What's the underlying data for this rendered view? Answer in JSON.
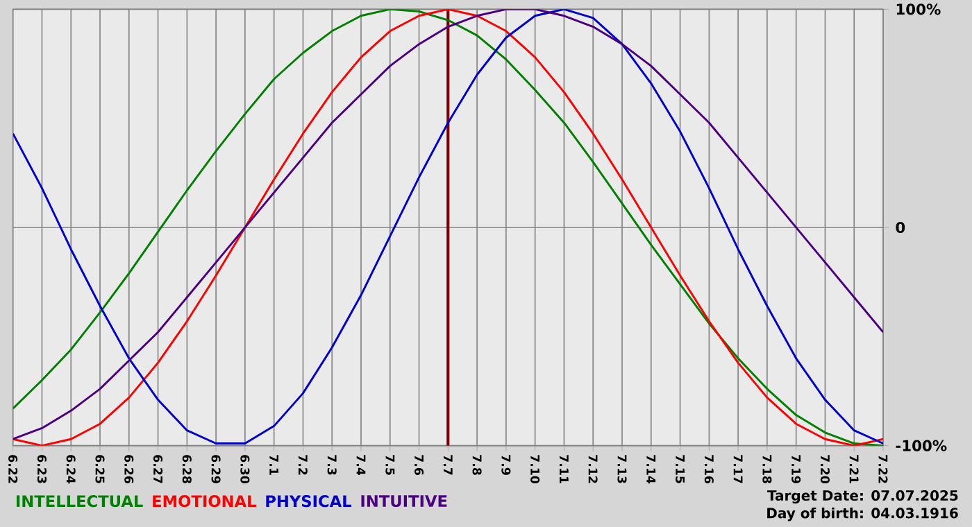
{
  "chart_data": {
    "type": "line",
    "categories": [
      "6.22",
      "6.23",
      "6.24",
      "6.25",
      "6.26",
      "6.27",
      "6.28",
      "6.29",
      "6.30",
      "7.1",
      "7.2",
      "7.3",
      "7.4",
      "7.5",
      "7.6",
      "7.7",
      "7.8",
      "7.9",
      "7.10",
      "7.11",
      "7.12",
      "7.13",
      "7.14",
      "7.15",
      "7.16",
      "7.17",
      "7.18",
      "7.19",
      "7.20",
      "7.21",
      "7.22"
    ],
    "series": [
      {
        "name": "INTELLECTUAL",
        "color": "#008000",
        "values": [
          -83,
          -70,
          -56,
          -39,
          -21,
          -2,
          17,
          35,
          52,
          68,
          80,
          90,
          97,
          100,
          99,
          95,
          88,
          77,
          63,
          48,
          30,
          11,
          -8,
          -26,
          -44,
          -60,
          -74,
          -86,
          -94,
          -99,
          -100
        ]
      },
      {
        "name": "EMOTIONAL",
        "color": "#ff0000",
        "values": [
          -97,
          -100,
          -97,
          -90,
          -78,
          -62,
          -43,
          -22,
          0,
          22,
          43,
          62,
          78,
          90,
          97,
          100,
          97,
          90,
          78,
          62,
          43,
          22,
          0,
          -22,
          -43,
          -62,
          -78,
          -90,
          -97,
          -100,
          -97
        ]
      },
      {
        "name": "PHYSICAL",
        "color": "#0000cc",
        "values": [
          43,
          18,
          -10,
          -36,
          -60,
          -79,
          -93,
          -99,
          -99,
          -91,
          -76,
          -55,
          -31,
          -4,
          23,
          48,
          70,
          87,
          97,
          100,
          96,
          84,
          66,
          44,
          18,
          -10,
          -36,
          -60,
          -79,
          -93,
          -99
        ]
      },
      {
        "name": "INTUITIVE",
        "color": "#4b0082",
        "values": [
          -97,
          -92,
          -84,
          -74,
          -61,
          -48,
          -32,
          -16,
          0,
          16,
          32,
          48,
          61,
          74,
          84,
          92,
          97,
          100,
          100,
          97,
          92,
          84,
          74,
          61,
          48,
          32,
          16,
          0,
          -16,
          -32,
          -48
        ]
      }
    ],
    "ylim": [
      -100,
      100
    ],
    "yticks": [
      {
        "value": 100,
        "label": "100%"
      },
      0,
      {
        "value": -100,
        "label": "-100%"
      }
    ],
    "grid": true,
    "legend": "bottom",
    "marker": "none",
    "line_style": "solid",
    "ref_lines": [
      {
        "axis": "x",
        "value": "7.7",
        "color": "#800000"
      }
    ],
    "annotations": [
      "Target Date: 07.07.2025",
      "Day of birth: 04.03.1916"
    ]
  }
}
